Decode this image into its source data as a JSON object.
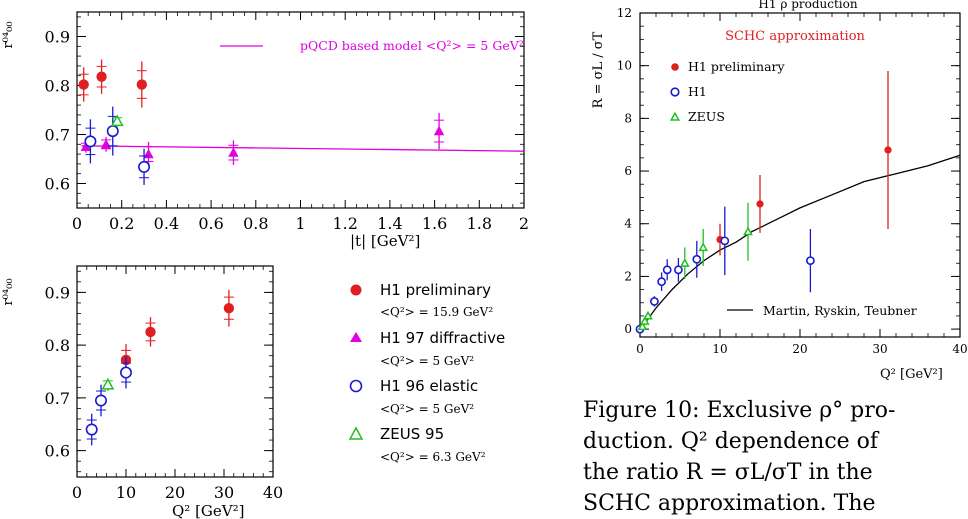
{
  "chart_data": [
    {
      "id": "top-left",
      "type": "scatter",
      "xlabel": "|t|  [GeV²]",
      "ylabel": "r⁰⁴₀₀",
      "xlim": [
        0,
        2
      ],
      "ylim": [
        0.55,
        0.95
      ],
      "xticks": [
        "0",
        "0.2",
        "0.4",
        "0.6",
        "0.8",
        "1",
        "1.2",
        "1.4",
        "1.6",
        "1.8",
        "2"
      ],
      "yticks": [
        "0.6",
        "0.7",
        "0.8",
        "0.9"
      ],
      "annotation": "pQCD based model <Q²> = 5 GeV²",
      "model_line": {
        "color": "#e000e0",
        "x": [
          0.02,
          2.0
        ],
        "y": [
          0.677,
          0.666
        ]
      },
      "series": [
        {
          "name": "H1 preliminary",
          "marker": "filled-circle",
          "color": "#e02020",
          "points": [
            [
              0.03,
              0.802,
              0.035
            ],
            [
              0.11,
              0.818,
              0.035
            ],
            [
              0.29,
              0.802,
              0.047
            ]
          ]
        },
        {
          "name": "H1 97 diffractive",
          "marker": "filled-triangle",
          "color": "#e000e0",
          "points": [
            [
              0.04,
              0.675,
              0.012
            ],
            [
              0.13,
              0.68,
              0.015
            ],
            [
              0.32,
              0.66,
              0.025
            ],
            [
              0.7,
              0.663,
              0.025
            ],
            [
              1.62,
              0.707,
              0.037
            ]
          ]
        },
        {
          "name": "H1 96 elastic",
          "marker": "open-circle",
          "color": "#1a1ad0",
          "points": [
            [
              0.06,
              0.686,
              0.045
            ],
            [
              0.16,
              0.707,
              0.05
            ],
            [
              0.3,
              0.634,
              0.037
            ]
          ]
        },
        {
          "name": "ZEUS 95",
          "marker": "open-triangle",
          "color": "#20c020",
          "points": [
            [
              0.18,
              0.727,
              0.012
            ]
          ]
        }
      ]
    },
    {
      "id": "bottom-left",
      "type": "scatter",
      "xlabel": "Q²  [GeV²]",
      "ylabel": "r⁰⁴₀₀",
      "xlim": [
        0,
        40
      ],
      "ylim": [
        0.55,
        0.95
      ],
      "xticks": [
        "0",
        "10",
        "20",
        "30",
        "40"
      ],
      "yticks": [
        "0.6",
        "0.7",
        "0.8",
        "0.9"
      ],
      "series": [
        {
          "name": "H1 preliminary",
          "marker": "filled-circle",
          "color": "#e02020",
          "points": [
            [
              10,
              0.772,
              0.03
            ],
            [
              15,
              0.825,
              0.028
            ],
            [
              31,
              0.87,
              0.035
            ]
          ]
        },
        {
          "name": "H1 96 elastic",
          "marker": "open-circle",
          "color": "#1a1ad0",
          "points": [
            [
              3,
              0.64,
              0.03
            ],
            [
              4.9,
              0.695,
              0.03
            ],
            [
              10,
              0.748,
              0.03
            ]
          ]
        },
        {
          "name": "ZEUS 95",
          "marker": "open-triangle",
          "color": "#20c020",
          "points": [
            [
              6.3,
              0.725,
              0.012
            ]
          ]
        }
      ]
    },
    {
      "id": "right",
      "type": "scatter",
      "title": "H1 ρ production",
      "xlabel": "Q²  [GeV²]",
      "ylabel": "R = σL / σT",
      "xlim": [
        0,
        40
      ],
      "ylim": [
        -0.3,
        12
      ],
      "xticks": [
        "0",
        "10",
        "20",
        "30",
        "40"
      ],
      "yticks": [
        "0",
        "2",
        "4",
        "6",
        "8",
        "10",
        "12"
      ],
      "annotation": "SCHC approximation",
      "model_line": {
        "name": "Martin, Ryskin, Teubner",
        "color": "#000000",
        "x": [
          0.3,
          2,
          4,
          6,
          8,
          10,
          12,
          14,
          16,
          18,
          20,
          24,
          28,
          32,
          36,
          40
        ],
        "y": [
          0.1,
          0.8,
          1.5,
          2.1,
          2.6,
          3.0,
          3.3,
          3.7,
          4.0,
          4.3,
          4.6,
          5.1,
          5.6,
          5.9,
          6.2,
          6.6
        ]
      },
      "series": [
        {
          "name": "H1 preliminary",
          "marker": "filled-circle",
          "color": "#e02020",
          "points": [
            [
              10,
              3.4,
              0.6
            ],
            [
              15,
              4.75,
              1.1
            ],
            [
              31,
              6.8,
              3.0
            ]
          ]
        },
        {
          "name": "H1",
          "marker": "open-circle",
          "color": "#1a1ad0",
          "points": [
            [
              0.0,
              0.0,
              0.1
            ],
            [
              1.8,
              1.05,
              0.2
            ],
            [
              2.7,
              1.8,
              0.35
            ],
            [
              3.4,
              2.25,
              0.4
            ],
            [
              4.8,
              2.25,
              0.45
            ],
            [
              7.1,
              2.65,
              0.7
            ],
            [
              10.6,
              3.35,
              1.3
            ],
            [
              21.3,
              2.6,
              1.2
            ]
          ]
        },
        {
          "name": "ZEUS",
          "marker": "open-triangle",
          "color": "#20c020",
          "points": [
            [
              0.3,
              0.1,
              0.1
            ],
            [
              0.6,
              0.3,
              0.15
            ],
            [
              1.0,
              0.5,
              0.15
            ],
            [
              5.6,
              2.5,
              0.6
            ],
            [
              7.9,
              3.1,
              0.7
            ],
            [
              13.5,
              3.7,
              1.1
            ]
          ]
        }
      ]
    }
  ],
  "legend_left": [
    {
      "label": "H1 preliminary",
      "sub": "<Q²> = 15.9 GeV²"
    },
    {
      "label": "H1 97 diffractive",
      "sub": "<Q²> = 5 GeV²"
    },
    {
      "label": "H1 96 elastic",
      "sub": "<Q²> = 5 GeV²"
    },
    {
      "label": "ZEUS 95",
      "sub": "<Q²> = 6.3 GeV²"
    }
  ],
  "legend_right": [
    "H1 preliminary",
    "H1",
    "ZEUS"
  ],
  "caption": {
    "line1": "Figure 10:  Exclusive ρ° pro-",
    "line2": "duction.   Q² dependence of",
    "line3": "the ratio R = σL/σT in the",
    "line4": "SCHC approximation.   The"
  },
  "colors": {
    "red": "#e02020",
    "magenta": "#e000e0",
    "blue": "#1a1ad0",
    "green": "#20c020"
  }
}
